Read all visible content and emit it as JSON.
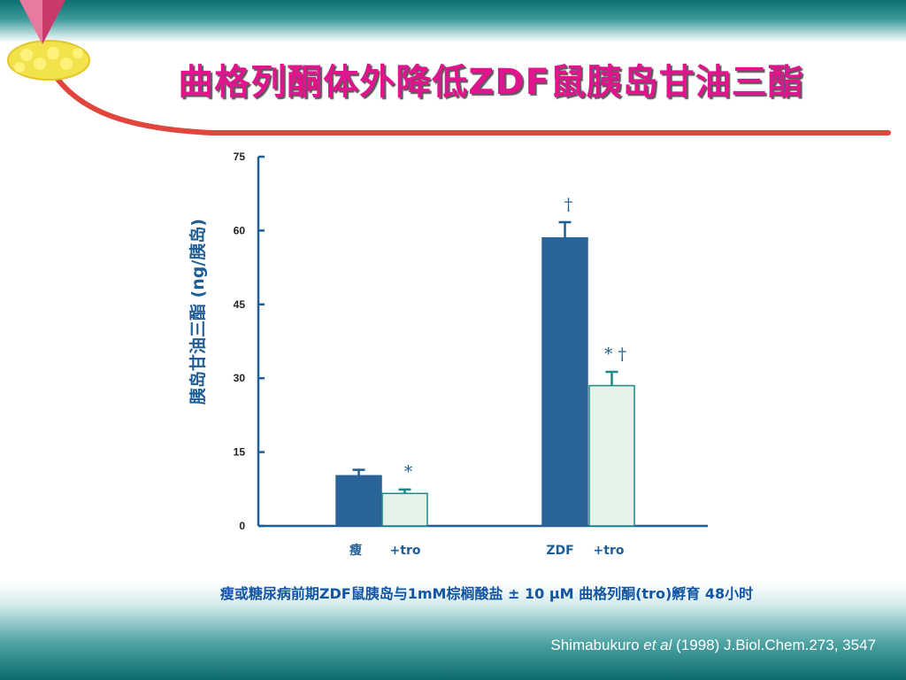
{
  "slide": {
    "title": "曲格列酮体外降低ZDF鼠胰岛甘油三酯",
    "caption": "瘦或糖尿病前期ZDF鼠胰岛与1mM棕榈酸盐 ± 10 μM 曲格列酮(tro)孵育 48小时",
    "citation_author": "Shimabukuro ",
    "citation_etal": "et al",
    "citation_rest": " (1998) J.Biol.Chem.273, 3547"
  },
  "colors": {
    "title": "#e0148c",
    "caption": "#1255a5",
    "axis": "#1f5d96",
    "bar_control": "#2a6398",
    "bar_tro": "#e4f2ea",
    "bar_tro_edge": "#1a8a86",
    "error_control": "#1f5d96",
    "error_tro": "#1a8a86",
    "marker": "#1f5d96"
  },
  "chart_data": {
    "type": "bar",
    "ylabel": "胰岛甘油三酯 (ng/胰岛)",
    "ylim": [
      0,
      75
    ],
    "yticks": [
      0,
      15,
      30,
      45,
      60,
      75
    ],
    "xlabels": [
      "瘦",
      "+tro",
      "ZDF",
      "+tro"
    ],
    "bars": [
      {
        "label": "瘦",
        "value": 10.2,
        "error": 1.2,
        "style": "control",
        "marker": ""
      },
      {
        "label": "+tro",
        "value": 6.6,
        "error": 0.8,
        "style": "tro",
        "marker": "*"
      },
      {
        "label": "ZDF",
        "value": 58.5,
        "error": 3.2,
        "style": "control",
        "marker": "†"
      },
      {
        "label": "+tro",
        "value": 28.5,
        "error": 2.8,
        "style": "tro",
        "marker": "* †"
      }
    ]
  }
}
